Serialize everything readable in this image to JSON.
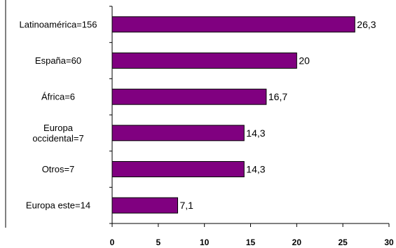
{
  "chart_data": {
    "type": "bar",
    "orientation": "horizontal",
    "title": "",
    "xlabel": "",
    "ylabel": "",
    "categories": [
      "Latinoamérica=156",
      "España=60",
      "África=6",
      "Europa occidental=7",
      "Otros=7",
      "Europa este=14"
    ],
    "category_lines": [
      [
        "Latinoamérica=156"
      ],
      [
        "España=60"
      ],
      [
        "África=6"
      ],
      [
        "Europa",
        "occidental=7"
      ],
      [
        "Otros=7"
      ],
      [
        "Europa este=14"
      ]
    ],
    "values": [
      26.3,
      20,
      16.7,
      14.3,
      14.3,
      7.1
    ],
    "value_labels": [
      "26,3",
      "20",
      "16,7",
      "14,3",
      "14,3",
      "7,1"
    ],
    "xlim": [
      0,
      30
    ],
    "xticks": [
      0,
      5,
      10,
      15,
      20,
      25,
      30
    ],
    "xtick_labels": [
      "0",
      "5",
      "10",
      "15",
      "20",
      "25",
      "30"
    ],
    "grid": false,
    "legend": "none",
    "colors": {
      "bar_fill": "#800080",
      "bar_stroke": "#000000",
      "axis": "#000000",
      "background": "#ffffff"
    }
  }
}
